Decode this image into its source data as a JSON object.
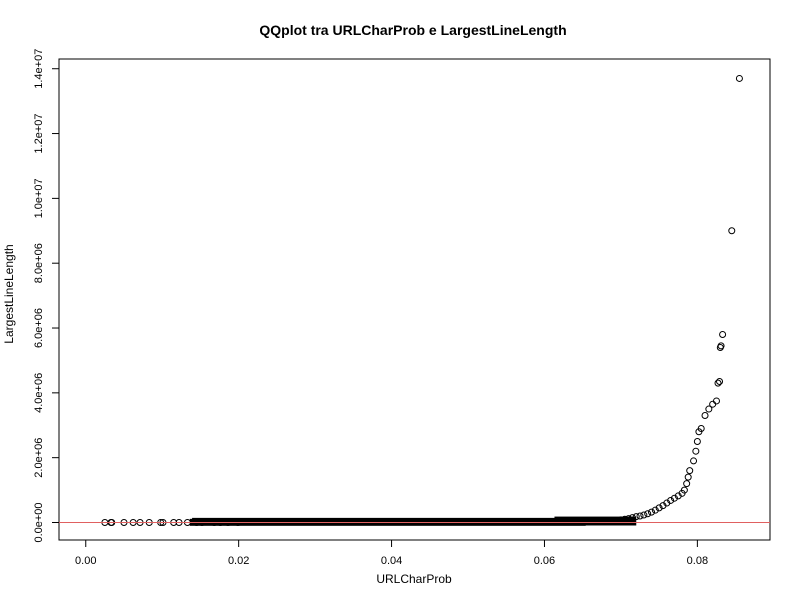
{
  "chart_data": {
    "type": "scatter",
    "title": "QQplot tra URLCharProb e LargestLineLength",
    "xlabel": "URLCharProb",
    "ylabel": "LargestLineLength",
    "xlim": [
      -0.0035,
      0.0895
    ],
    "ylim": [
      -540000,
      14300000
    ],
    "xticks": [
      0.0,
      0.02,
      0.04,
      0.06,
      0.08
    ],
    "xtick_labels": [
      "0.00",
      "0.02",
      "0.04",
      "0.06",
      "0.08"
    ],
    "yticks": [
      0,
      2000000,
      4000000,
      6000000,
      8000000,
      10000000,
      12000000,
      14000000
    ],
    "ytick_labels": [
      "0.0e+00",
      "2.0e+06",
      "4.0e+06",
      "6.0e+06",
      "8.0e+06",
      "1.0e+07",
      "1.2e+07",
      "1.4e+07"
    ],
    "reference_line": {
      "y": 0,
      "color": "#e06060"
    },
    "grid": false,
    "legend": "none",
    "marker": "open-circle",
    "points": [
      [
        0.0025,
        0
      ],
      [
        0.0033,
        0
      ],
      [
        0.0034,
        0
      ],
      [
        0.005,
        0
      ],
      [
        0.0062,
        0
      ],
      [
        0.0071,
        0
      ],
      [
        0.0083,
        0
      ],
      [
        0.0098,
        0
      ],
      [
        0.0101,
        0
      ],
      [
        0.0115,
        0
      ],
      [
        0.0122,
        0
      ],
      [
        0.0133,
        0
      ],
      [
        0.0145,
        0
      ],
      [
        0.0152,
        0
      ],
      [
        0.0168,
        0
      ],
      [
        0.0176,
        0
      ],
      [
        0.0186,
        0
      ],
      [
        0.0199,
        0
      ],
      [
        0.062,
        20000
      ],
      [
        0.064,
        30000
      ],
      [
        0.066,
        40000
      ],
      [
        0.068,
        50000
      ],
      [
        0.069,
        60000
      ],
      [
        0.07,
        80000
      ],
      [
        0.0705,
        100000
      ],
      [
        0.071,
        120000
      ],
      [
        0.0715,
        150000
      ],
      [
        0.072,
        180000
      ],
      [
        0.0725,
        200000
      ],
      [
        0.073,
        230000
      ],
      [
        0.0735,
        270000
      ],
      [
        0.074,
        320000
      ],
      [
        0.0745,
        380000
      ],
      [
        0.075,
        450000
      ],
      [
        0.0755,
        520000
      ],
      [
        0.076,
        600000
      ],
      [
        0.0765,
        680000
      ],
      [
        0.077,
        750000
      ],
      [
        0.0775,
        820000
      ],
      [
        0.078,
        900000
      ],
      [
        0.0783,
        1000000
      ],
      [
        0.0786,
        1200000
      ],
      [
        0.0788,
        1400000
      ],
      [
        0.079,
        1600000
      ],
      [
        0.0795,
        1900000
      ],
      [
        0.0798,
        2200000
      ],
      [
        0.08,
        2500000
      ],
      [
        0.0802,
        2800000
      ],
      [
        0.0805,
        2900000
      ],
      [
        0.081,
        3300000
      ],
      [
        0.0815,
        3500000
      ],
      [
        0.082,
        3650000
      ],
      [
        0.0825,
        3750000
      ],
      [
        0.0827,
        4300000
      ],
      [
        0.0829,
        4350000
      ],
      [
        0.083,
        5400000
      ],
      [
        0.0831,
        5450000
      ],
      [
        0.0833,
        5800000
      ],
      [
        0.0845,
        9000000
      ],
      [
        0.0855,
        13700000
      ]
    ],
    "dense_bands": [
      {
        "x_from": 0.0143,
        "x_to": 0.0716,
        "y_from": 0,
        "y_to": 50000
      },
      {
        "x_from": 0.0617,
        "x_to": 0.0716,
        "y_from": 0,
        "y_to": 90000
      },
      {
        "x_from": 0.014,
        "x_to": 0.065,
        "y_from": -10000,
        "y_to": 20000
      }
    ]
  }
}
